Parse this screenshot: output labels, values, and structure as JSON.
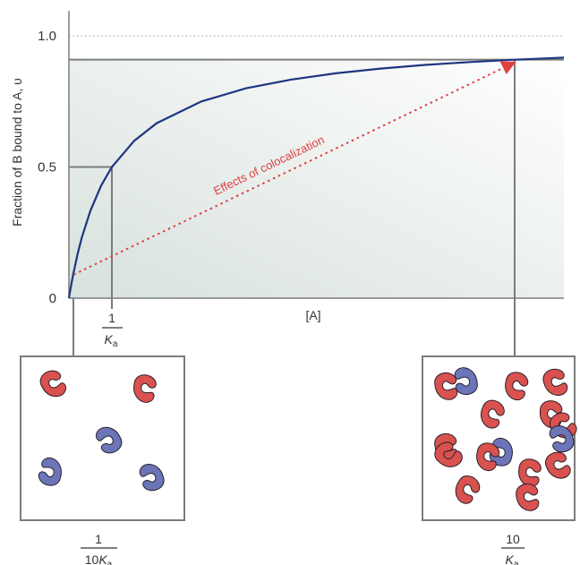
{
  "chart_data": {
    "type": "line",
    "ylabel": "Fraction of B bound to A, υ",
    "xlabel": "[A]",
    "y_ticks": [
      "0",
      "0.5",
      "1.0"
    ],
    "ylim": [
      0,
      1.0
    ],
    "x_tick": {
      "numerator": "1",
      "denominator_var": "K",
      "denominator_sub": "a"
    },
    "series": [
      {
        "kind": "binding-curve",
        "x": [
          0,
          0.05,
          0.1,
          0.2,
          0.3,
          0.5,
          0.75,
          1,
          1.5,
          2,
          3,
          4,
          5,
          6,
          7,
          8,
          9,
          10,
          11
        ],
        "y": [
          0,
          0.048,
          0.091,
          0.167,
          0.231,
          0.333,
          0.429,
          0.5,
          0.6,
          0.667,
          0.75,
          0.8,
          0.833,
          0.857,
          0.875,
          0.889,
          0.9,
          0.909,
          0.917
        ]
      }
    ],
    "guides": [
      {
        "x": 1,
        "y": 0.5
      },
      {
        "x": 10,
        "y": 0.909
      }
    ],
    "arrow": {
      "from": [
        0.05,
        0.09
      ],
      "to": [
        10,
        0.909
      ]
    },
    "annotation": "Effects of colocalization",
    "reference_line_y": 1.0,
    "colors": {
      "curve": "#1f3580",
      "arrow": "#e0403f",
      "guide": "#7a7d7c",
      "shade": "#dde6e3",
      "red_protein": "#d9524f",
      "blue_protein": "#6b75b8"
    }
  },
  "panels": {
    "left": {
      "label": {
        "numerator": "1",
        "denominator_prefix": "10",
        "denominator_var": "K",
        "denominator_sub": "a"
      },
      "proteins": [
        {
          "color": "red",
          "rotate": -20
        },
        {
          "color": "red",
          "rotate": 15
        },
        {
          "color": "blue",
          "rotate": 160
        },
        {
          "color": "blue",
          "rotate": 200
        },
        {
          "color": "blue",
          "rotate": 170
        }
      ]
    },
    "right": {
      "label": {
        "numerator": "10",
        "denominator_var": "K",
        "denominator_sub": "a"
      },
      "proteins": [
        {
          "color": "red",
          "rotate": 0
        },
        {
          "color": "blue",
          "rotate": 180
        },
        {
          "color": "red",
          "rotate": 20
        },
        {
          "color": "red",
          "rotate": -10
        },
        {
          "color": "red",
          "rotate": 30
        },
        {
          "color": "red",
          "rotate": 10
        },
        {
          "color": "red",
          "rotate": 0
        },
        {
          "color": "blue",
          "rotate": 200
        },
        {
          "color": "red",
          "rotate": -30
        },
        {
          "color": "red",
          "rotate": 15
        },
        {
          "color": "red",
          "rotate": -15
        },
        {
          "color": "blue",
          "rotate": 170
        },
        {
          "color": "red",
          "rotate": 40
        },
        {
          "color": "red",
          "rotate": 0
        },
        {
          "color": "red",
          "rotate": -40
        },
        {
          "color": "red",
          "rotate": 20
        }
      ]
    }
  }
}
